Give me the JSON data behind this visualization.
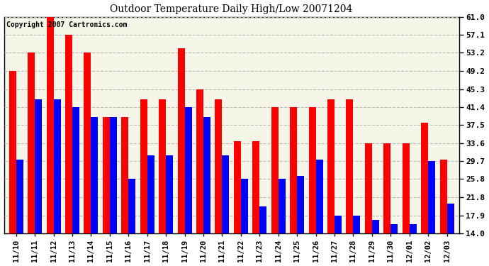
{
  "title": "Outdoor Temperature Daily High/Low 20071204",
  "copyright_text": "Copyright 2007 Cartronics.com",
  "labels": [
    "11/10",
    "11/11",
    "11/12",
    "11/13",
    "11/14",
    "11/15",
    "11/16",
    "11/17",
    "11/18",
    "11/19",
    "11/20",
    "11/21",
    "11/22",
    "11/23",
    "11/24",
    "11/25",
    "11/26",
    "11/27",
    "11/28",
    "11/29",
    "11/30",
    "12/01",
    "12/02",
    "12/03"
  ],
  "highs": [
    49.2,
    53.2,
    61.0,
    57.1,
    53.2,
    39.2,
    39.2,
    43.1,
    43.1,
    54.1,
    45.3,
    43.1,
    34.0,
    34.0,
    41.4,
    41.4,
    41.4,
    43.1,
    43.1,
    33.6,
    33.6,
    33.6,
    38.0,
    30.0
  ],
  "lows": [
    30.0,
    43.1,
    43.1,
    41.4,
    39.2,
    39.2,
    25.8,
    31.0,
    31.0,
    41.4,
    39.2,
    31.0,
    25.8,
    19.9,
    25.8,
    26.5,
    30.0,
    17.9,
    17.9,
    17.0,
    16.0,
    16.0,
    29.7,
    20.5
  ],
  "ylim_min": 14.0,
  "ylim_max": 61.0,
  "yticks": [
    14.0,
    17.9,
    21.8,
    25.8,
    29.7,
    33.6,
    37.5,
    41.4,
    45.3,
    49.2,
    53.2,
    57.1,
    61.0
  ],
  "high_color": "#ff0000",
  "low_color": "#0000ff",
  "bg_color": "#ffffff",
  "plot_bg_color": "#f5f5e8",
  "grid_color": "#bbbbbb",
  "bar_width": 0.38,
  "title_fontsize": 10,
  "tick_fontsize": 7.5,
  "copyright_fontsize": 7
}
